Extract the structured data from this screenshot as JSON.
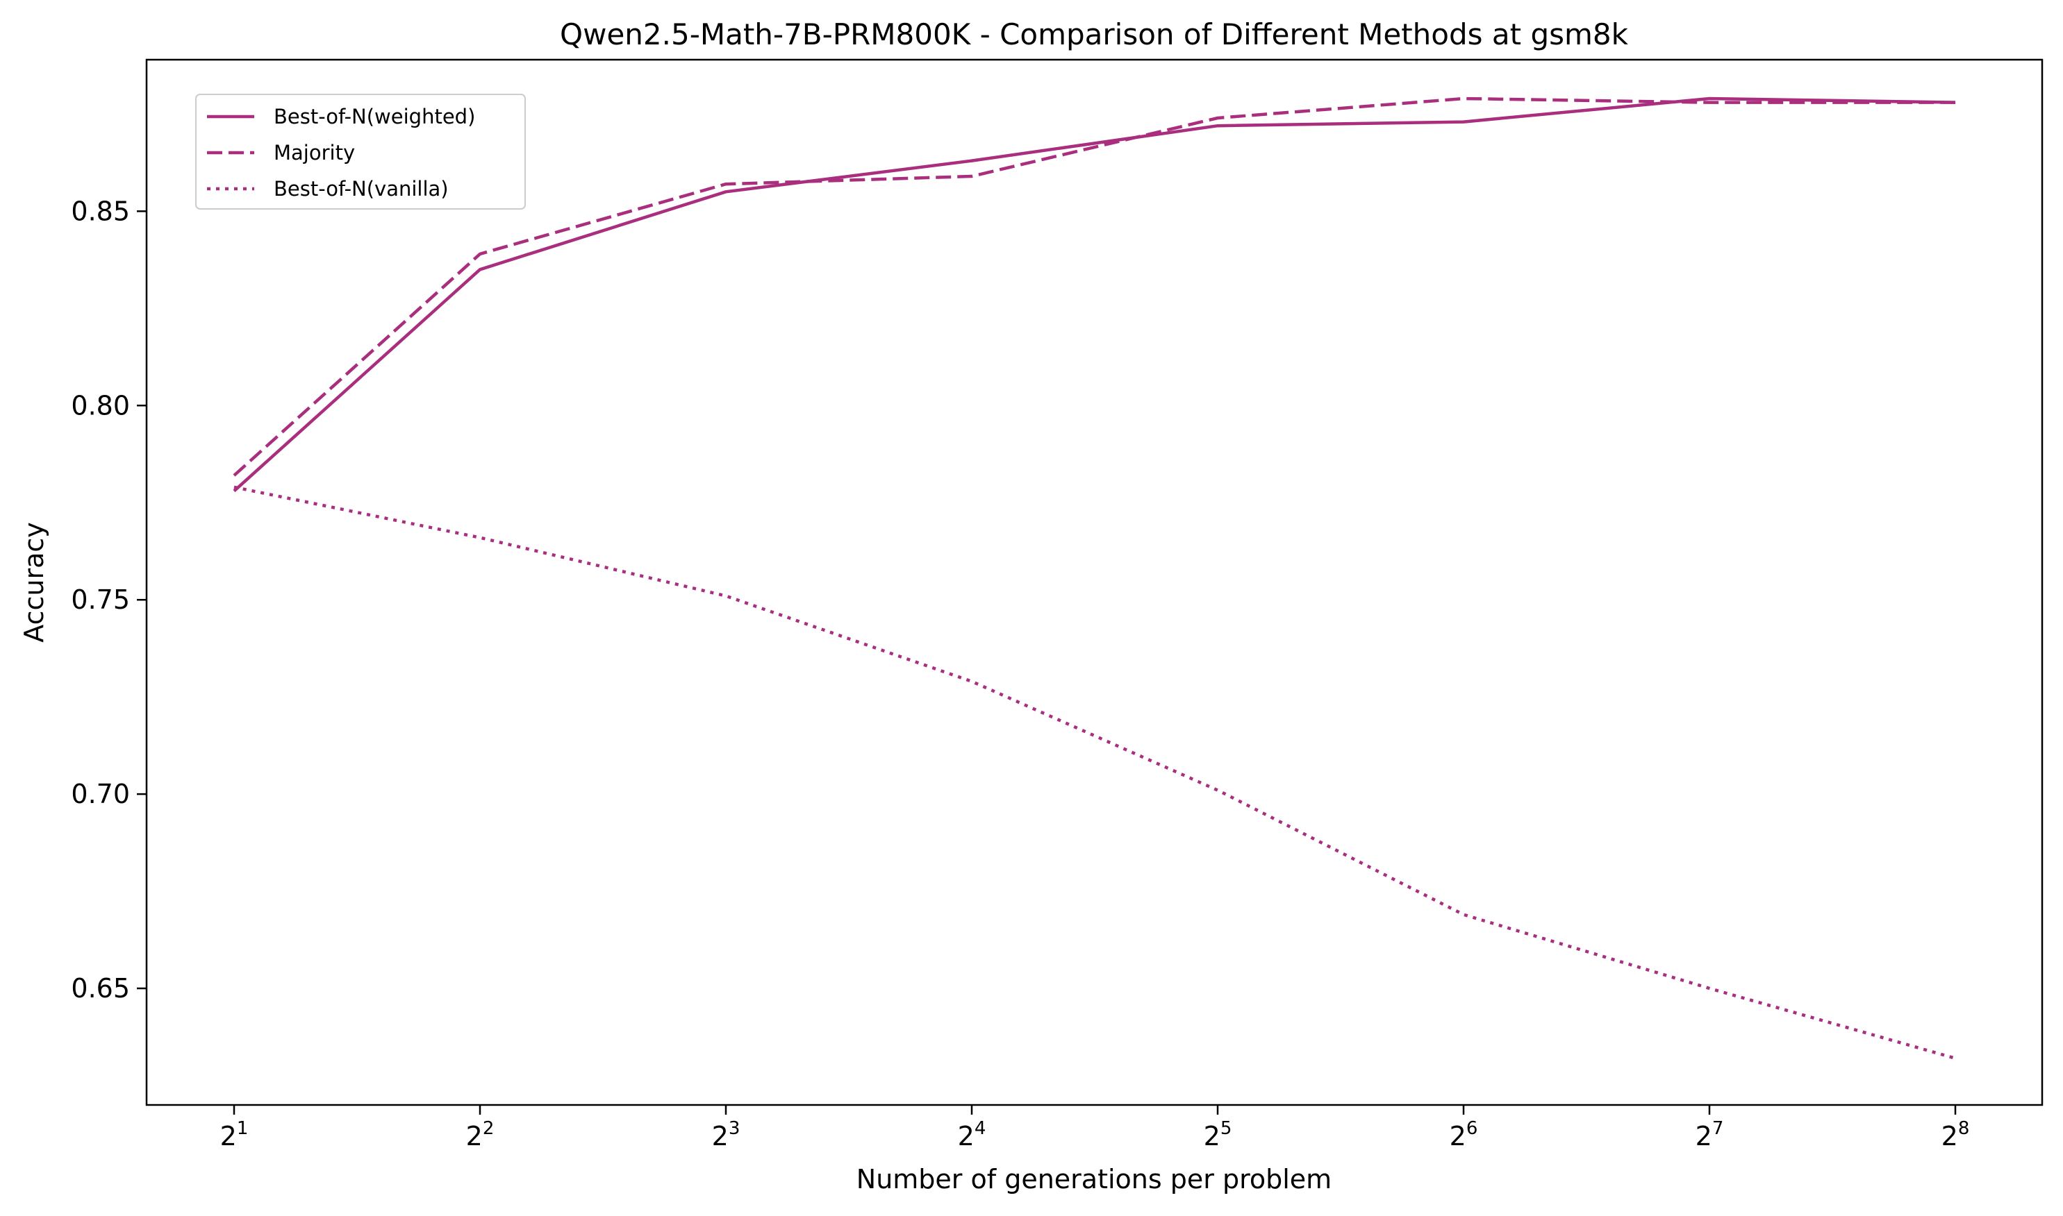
{
  "chart_data": {
    "type": "line",
    "title": "Qwen2.5-Math-7B-PRM800K - Comparison of Different Methods at gsm8k",
    "xlabel": "Number of generations per problem",
    "ylabel": "Accuracy",
    "x_scale": "log2",
    "x": [
      2,
      4,
      8,
      16,
      32,
      64,
      128,
      256
    ],
    "x_tick_labels": [
      {
        "base": "2",
        "exp": "1"
      },
      {
        "base": "2",
        "exp": "2"
      },
      {
        "base": "2",
        "exp": "3"
      },
      {
        "base": "2",
        "exp": "4"
      },
      {
        "base": "2",
        "exp": "5"
      },
      {
        "base": "2",
        "exp": "6"
      },
      {
        "base": "2",
        "exp": "7"
      },
      {
        "base": "2",
        "exp": "8"
      }
    ],
    "ylim": [
      0.62,
      0.889
    ],
    "y_ticks": [
      0.65,
      0.7,
      0.75,
      0.8,
      0.85
    ],
    "y_tick_labels": [
      "0.65",
      "0.70",
      "0.75",
      "0.80",
      "0.85"
    ],
    "grid": false,
    "legend_position": "upper-left",
    "series": [
      {
        "name": "Best-of-N(weighted)",
        "style": "solid",
        "color": "#AA2E7E",
        "values": [
          0.778,
          0.835,
          0.855,
          0.863,
          0.872,
          0.873,
          0.879,
          0.878
        ]
      },
      {
        "name": "Majority",
        "style": "dashed",
        "color": "#AA2E7E",
        "values": [
          0.782,
          0.839,
          0.857,
          0.859,
          0.874,
          0.879,
          0.878,
          0.878
        ]
      },
      {
        "name": "Best-of-N(vanilla)",
        "style": "dotted",
        "color": "#AA2E7E",
        "values": [
          0.779,
          0.766,
          0.751,
          0.729,
          0.701,
          0.669,
          0.65,
          0.632
        ]
      }
    ]
  }
}
